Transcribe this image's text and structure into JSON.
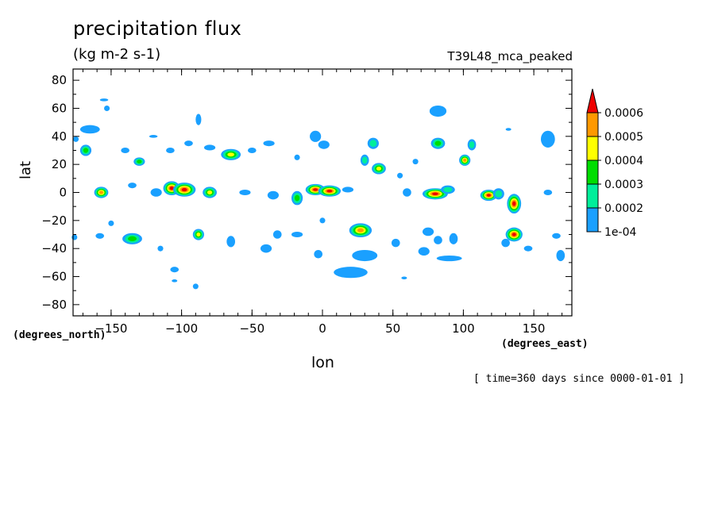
{
  "chart_data": {
    "type": "heatmap",
    "title": "precipitation flux",
    "units": "(kg m-2 s-1)",
    "run_label": "T39L48_mca_peaked",
    "xlabel": "lon",
    "ylabel": "lat",
    "x_units": "(degrees_east)",
    "y_units": "(degrees_north)",
    "footer": "[ time=360 days since 0000-01-01 ]",
    "xlim": [
      -177,
      177
    ],
    "ylim": [
      -88,
      88
    ],
    "x_ticks": [
      -150,
      -100,
      -50,
      0,
      50,
      100,
      150
    ],
    "y_ticks": [
      80,
      60,
      40,
      20,
      0,
      -20,
      -40,
      -60,
      -80
    ],
    "colorbar": {
      "labels": [
        "1e-04",
        "0.0002",
        "0.0003",
        "0.0004",
        "0.0005",
        "0.0006"
      ],
      "colors": [
        "#1aa0ff",
        "#00ee9a",
        "#00dd00",
        "#ffff00",
        "#ff9900",
        "#ee0000"
      ],
      "extend": "max"
    },
    "cells": [
      {
        "lon": -165,
        "lat": 45,
        "r": [
          7,
          3
        ],
        "level": 1
      },
      {
        "lon": -168,
        "lat": 30,
        "r": [
          4,
          4
        ],
        "level": 3
      },
      {
        "lon": -155,
        "lat": 66,
        "r": [
          3,
          1
        ],
        "level": 1
      },
      {
        "lon": -153,
        "lat": 60,
        "r": [
          2,
          2
        ],
        "level": 1
      },
      {
        "lon": -140,
        "lat": 30,
        "r": [
          3,
          2
        ],
        "level": 1
      },
      {
        "lon": -130,
        "lat": 22,
        "r": [
          4,
          3
        ],
        "level": 3
      },
      {
        "lon": -120,
        "lat": 40,
        "r": [
          3,
          1
        ],
        "level": 1
      },
      {
        "lon": -108,
        "lat": 30,
        "r": [
          3,
          2
        ],
        "level": 1
      },
      {
        "lon": -88,
        "lat": 52,
        "r": [
          2,
          4
        ],
        "level": 1
      },
      {
        "lon": -95,
        "lat": 35,
        "r": [
          3,
          2
        ],
        "level": 1
      },
      {
        "lon": -80,
        "lat": 32,
        "r": [
          4,
          2
        ],
        "level": 1
      },
      {
        "lon": -65,
        "lat": 27,
        "r": [
          7,
          4
        ],
        "level": 4
      },
      {
        "lon": -50,
        "lat": 30,
        "r": [
          3,
          2
        ],
        "level": 1
      },
      {
        "lon": -38,
        "lat": 35,
        "r": [
          4,
          2
        ],
        "level": 1
      },
      {
        "lon": -157,
        "lat": 0,
        "r": [
          5,
          4
        ],
        "level": 5
      },
      {
        "lon": -135,
        "lat": 5,
        "r": [
          3,
          2
        ],
        "level": 1
      },
      {
        "lon": -118,
        "lat": 0,
        "r": [
          4,
          3
        ],
        "level": 1
      },
      {
        "lon": -107,
        "lat": 3,
        "r": [
          6,
          5
        ],
        "level": 6
      },
      {
        "lon": -98,
        "lat": 2,
        "r": [
          8,
          5
        ],
        "level": 6
      },
      {
        "lon": -80,
        "lat": 0,
        "r": [
          5,
          4
        ],
        "level": 4
      },
      {
        "lon": -55,
        "lat": 0,
        "r": [
          4,
          2
        ],
        "level": 1
      },
      {
        "lon": -35,
        "lat": -2,
        "r": [
          4,
          3
        ],
        "level": 1
      },
      {
        "lon": -18,
        "lat": -4,
        "r": [
          4,
          5
        ],
        "level": 3
      },
      {
        "lon": -5,
        "lat": 2,
        "r": [
          7,
          4
        ],
        "level": 6
      },
      {
        "lon": 5,
        "lat": 1,
        "r": [
          8,
          4
        ],
        "level": 6
      },
      {
        "lon": 18,
        "lat": 2,
        "r": [
          4,
          2
        ],
        "level": 1
      },
      {
        "lon": -5,
        "lat": 40,
        "r": [
          4,
          4
        ],
        "level": 1
      },
      {
        "lon": 1,
        "lat": 34,
        "r": [
          4,
          3
        ],
        "level": 1
      },
      {
        "lon": -18,
        "lat": 25,
        "r": [
          2,
          2
        ],
        "level": 1
      },
      {
        "lon": 30,
        "lat": 23,
        "r": [
          3,
          4
        ],
        "level": 2
      },
      {
        "lon": 36,
        "lat": 35,
        "r": [
          4,
          4
        ],
        "level": 2
      },
      {
        "lon": 40,
        "lat": 17,
        "r": [
          5,
          4
        ],
        "level": 4
      },
      {
        "lon": 60,
        "lat": 0,
        "r": [
          3,
          3
        ],
        "level": 1
      },
      {
        "lon": 80,
        "lat": -1,
        "r": [
          9,
          4
        ],
        "level": 6
      },
      {
        "lon": 89,
        "lat": 2,
        "r": [
          5,
          3
        ],
        "level": 2
      },
      {
        "lon": 82,
        "lat": 58,
        "r": [
          6,
          4
        ],
        "level": 1
      },
      {
        "lon": 82,
        "lat": 35,
        "r": [
          5,
          4
        ],
        "level": 3
      },
      {
        "lon": 106,
        "lat": 34,
        "r": [
          3,
          4
        ],
        "level": 2
      },
      {
        "lon": 101,
        "lat": 23,
        "r": [
          4,
          4
        ],
        "level": 5
      },
      {
        "lon": 118,
        "lat": -2,
        "r": [
          6,
          4
        ],
        "level": 6
      },
      {
        "lon": 125,
        "lat": -1,
        "r": [
          4,
          4
        ],
        "level": 2
      },
      {
        "lon": 136,
        "lat": -8,
        "r": [
          5,
          7
        ],
        "level": 6
      },
      {
        "lon": 160,
        "lat": 38,
        "r": [
          5,
          6
        ],
        "level": 1
      },
      {
        "lon": 132,
        "lat": 45,
        "r": [
          2,
          1
        ],
        "level": 1
      },
      {
        "lon": 20,
        "lat": -57,
        "r": [
          12,
          4
        ],
        "level": 1
      },
      {
        "lon": 30,
        "lat": -45,
        "r": [
          9,
          4
        ],
        "level": 1
      },
      {
        "lon": 27,
        "lat": -27,
        "r": [
          8,
          5
        ],
        "level": 5
      },
      {
        "lon": -135,
        "lat": -33,
        "r": [
          7,
          4
        ],
        "level": 3
      },
      {
        "lon": -88,
        "lat": -30,
        "r": [
          4,
          4
        ],
        "level": 4
      },
      {
        "lon": -105,
        "lat": -55,
        "r": [
          3,
          2
        ],
        "level": 1
      },
      {
        "lon": -105,
        "lat": -63,
        "r": [
          2,
          1
        ],
        "level": 1
      },
      {
        "lon": -90,
        "lat": -67,
        "r": [
          2,
          2
        ],
        "level": 1
      },
      {
        "lon": -65,
        "lat": -35,
        "r": [
          3,
          4
        ],
        "level": 1
      },
      {
        "lon": -40,
        "lat": -40,
        "r": [
          4,
          3
        ],
        "level": 1
      },
      {
        "lon": -32,
        "lat": -30,
        "r": [
          3,
          3
        ],
        "level": 1
      },
      {
        "lon": -18,
        "lat": -30,
        "r": [
          4,
          2
        ],
        "level": 1
      },
      {
        "lon": -3,
        "lat": -44,
        "r": [
          3,
          3
        ],
        "level": 1
      },
      {
        "lon": 52,
        "lat": -36,
        "r": [
          3,
          3
        ],
        "level": 1
      },
      {
        "lon": 58,
        "lat": -61,
        "r": [
          2,
          1
        ],
        "level": 1
      },
      {
        "lon": 75,
        "lat": -28,
        "r": [
          4,
          3
        ],
        "level": 1
      },
      {
        "lon": 82,
        "lat": -34,
        "r": [
          3,
          3
        ],
        "level": 1
      },
      {
        "lon": 93,
        "lat": -33,
        "r": [
          3,
          4
        ],
        "level": 1
      },
      {
        "lon": 90,
        "lat": -47,
        "r": [
          9,
          2
        ],
        "level": 1
      },
      {
        "lon": 72,
        "lat": -42,
        "r": [
          4,
          3
        ],
        "level": 1
      },
      {
        "lon": 136,
        "lat": -30,
        "r": [
          6,
          5
        ],
        "level": 6
      },
      {
        "lon": 130,
        "lat": -36,
        "r": [
          3,
          3
        ],
        "level": 1
      },
      {
        "lon": 146,
        "lat": -40,
        "r": [
          3,
          2
        ],
        "level": 1
      },
      {
        "lon": 166,
        "lat": -31,
        "r": [
          3,
          2
        ],
        "level": 1
      },
      {
        "lon": 169,
        "lat": -45,
        "r": [
          3,
          4
        ],
        "level": 1
      },
      {
        "lon": -158,
        "lat": -31,
        "r": [
          3,
          2
        ],
        "level": 1
      },
      {
        "lon": -176,
        "lat": -32,
        "r": [
          2,
          2
        ],
        "level": 1
      },
      {
        "lon": -175,
        "lat": 38,
        "r": [
          2,
          2
        ],
        "level": 1
      },
      {
        "lon": -150,
        "lat": -22,
        "r": [
          2,
          2
        ],
        "level": 1
      },
      {
        "lon": -115,
        "lat": -40,
        "r": [
          2,
          2
        ],
        "level": 1
      },
      {
        "lon": 160,
        "lat": 0,
        "r": [
          3,
          2
        ],
        "level": 1
      },
      {
        "lon": 55,
        "lat": 12,
        "r": [
          2,
          2
        ],
        "level": 1
      },
      {
        "lon": 66,
        "lat": 22,
        "r": [
          2,
          2
        ],
        "level": 1
      },
      {
        "lon": 0,
        "lat": -20,
        "r": [
          2,
          2
        ],
        "level": 1
      }
    ]
  }
}
